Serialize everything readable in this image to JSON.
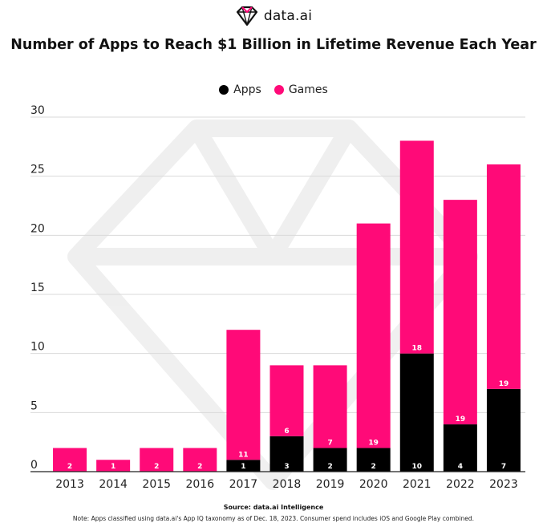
{
  "brand": {
    "name": "data.ai",
    "logo_icon": "diamond-logo-icon"
  },
  "title": "Number of Apps to Reach $1 Billion in Lifetime Revenue Each Year",
  "legend": [
    {
      "label": "Apps",
      "color": "#000000"
    },
    {
      "label": "Games",
      "color": "#ff0a78"
    }
  ],
  "chart_data": {
    "type": "bar",
    "stacked": true,
    "title": "Number of Apps to Reach $1 Billion in Lifetime Revenue Each Year",
    "xlabel": "",
    "ylabel": "",
    "ylim": [
      0,
      30
    ],
    "yticks": [
      0,
      5,
      10,
      15,
      20,
      25,
      30
    ],
    "categories": [
      "2013",
      "2014",
      "2015",
      "2016",
      "2017",
      "2018",
      "2019",
      "2020",
      "2021",
      "2022",
      "2023"
    ],
    "series": [
      {
        "name": "Apps",
        "color": "#000000",
        "values": [
          0,
          0,
          0,
          0,
          1,
          3,
          2,
          2,
          10,
          4,
          7
        ]
      },
      {
        "name": "Games",
        "color": "#ff0a78",
        "values": [
          2,
          1,
          2,
          2,
          11,
          6,
          7,
          19,
          18,
          19,
          19
        ]
      }
    ],
    "grid": true,
    "legend_position": "top-center"
  },
  "footer": {
    "source": "Source: data.ai Intelligence",
    "note": "Note: Apps classified using data.ai's App IQ taxonomy as of Dec. 18, 2023. Consumer spend includes iOS and Google Play combined."
  }
}
